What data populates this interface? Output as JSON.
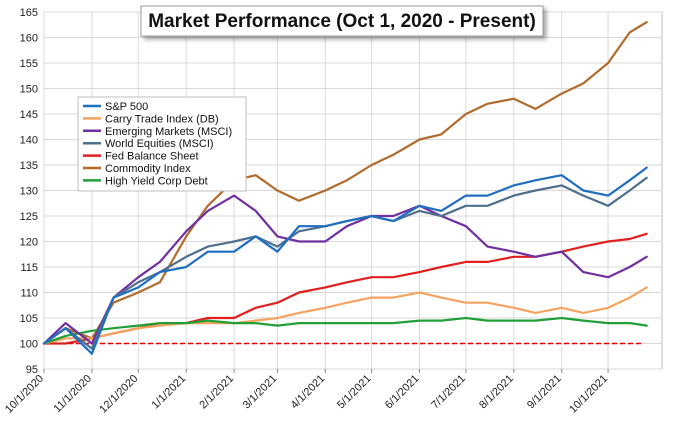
{
  "chart_data": {
    "type": "line",
    "title": "Market Performance (Oct 1, 2020 - Present)",
    "xlabel": "",
    "ylabel": "",
    "ylim": [
      95,
      165
    ],
    "yticks": [
      95,
      100,
      105,
      110,
      115,
      120,
      125,
      130,
      135,
      140,
      145,
      150,
      155,
      160,
      165
    ],
    "xtick_labels": [
      "10/1/2020",
      "11/1/2020",
      "12/1/2020",
      "1/1/2021",
      "2/1/2021",
      "3/1/2021",
      "4/1/2021",
      "5/1/2021",
      "6/1/2021",
      "7/1/2021",
      "8/1/2021",
      "9/1/2021",
      "10/1/2021"
    ],
    "grid": true,
    "legend_position": "upper-left",
    "baseline": {
      "value": 100,
      "color": "#e00000",
      "style": "dashed"
    },
    "x": [
      "10/1/2020",
      "10/15/2020",
      "11/1/2020",
      "11/15/2020",
      "12/1/2020",
      "12/15/2020",
      "1/1/2021",
      "1/15/2021",
      "2/1/2021",
      "2/15/2021",
      "3/1/2021",
      "3/15/2021",
      "4/1/2021",
      "4/15/2021",
      "5/1/2021",
      "5/15/2021",
      "6/1/2021",
      "6/15/2021",
      "7/1/2021",
      "7/15/2021",
      "8/1/2021",
      "8/15/2021",
      "9/1/2021",
      "9/15/2021",
      "10/1/2021",
      "10/15/2021",
      "10/26/2021"
    ],
    "series": [
      {
        "name": "S&P 500",
        "color": "#1f6fc1",
        "values": [
          100,
          103,
          98,
          109,
          111,
          114,
          115,
          118,
          118,
          121,
          118,
          123,
          123,
          124,
          125,
          124,
          127,
          126,
          129,
          129,
          131,
          132,
          133,
          130,
          129,
          132,
          134.5
        ]
      },
      {
        "name": "Carry Trade Index (DB)",
        "color": "#f4a460",
        "values": [
          100,
          101,
          101,
          102,
          103,
          103.5,
          104,
          104,
          104,
          104.5,
          105,
          106,
          107,
          108,
          109,
          109,
          110,
          109,
          108,
          108,
          107,
          106,
          107,
          106,
          107,
          109,
          111
        ]
      },
      {
        "name": "Emerging Markets (MSCI)",
        "color": "#7030a0",
        "values": [
          100,
          104,
          100,
          109,
          113,
          116,
          122,
          126,
          129,
          126,
          121,
          120,
          120,
          123,
          125,
          125,
          127,
          125,
          123,
          119,
          118,
          117,
          118,
          114,
          113,
          115,
          117
        ]
      },
      {
        "name": "World Equities (MSCI)",
        "color": "#4f6f8f",
        "values": [
          100,
          103,
          99,
          109,
          112,
          114,
          117,
          119,
          120,
          121,
          119,
          122,
          123,
          124,
          125,
          124,
          126,
          125,
          127,
          127,
          129,
          130,
          131,
          129,
          127,
          130,
          132.5
        ]
      },
      {
        "name": "Fed Balance Sheet",
        "color": "#e0201e",
        "values": [
          100,
          100,
          101,
          102,
          103,
          104,
          104,
          105,
          105,
          107,
          108,
          110,
          111,
          112,
          113,
          113,
          114,
          115,
          116,
          116,
          117,
          117,
          118,
          119,
          120,
          120.5,
          121.5
        ]
      },
      {
        "name": "Commodity Index",
        "color": "#b06b2d",
        "values": [
          100,
          103,
          101,
          108,
          110,
          112,
          121,
          127,
          132,
          133,
          130,
          128,
          130,
          132,
          135,
          137,
          140,
          141,
          145,
          147,
          148,
          146,
          149,
          151,
          155,
          161,
          163
        ]
      },
      {
        "name": "High Yield Corp Debt",
        "color": "#22a038",
        "values": [
          100,
          101.5,
          102.5,
          103,
          103.5,
          104,
          104,
          104.5,
          104,
          104,
          103.5,
          104,
          104,
          104,
          104,
          104,
          104.5,
          104.5,
          105,
          104.5,
          104.5,
          104.5,
          105,
          104.5,
          104,
          104,
          103.5
        ]
      }
    ]
  }
}
